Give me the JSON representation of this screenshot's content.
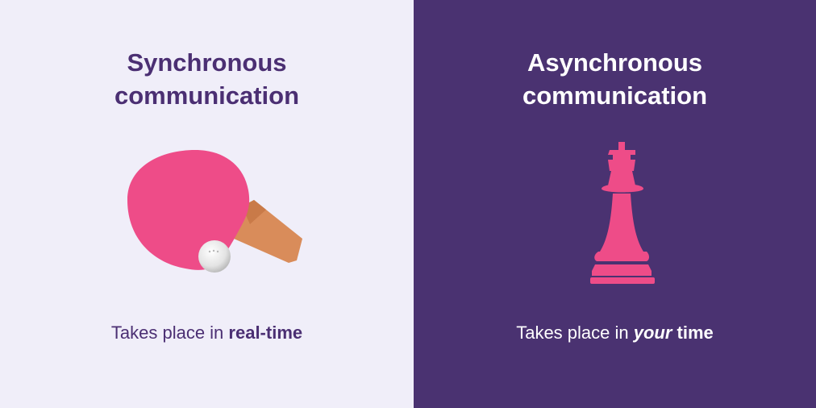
{
  "left_panel": {
    "title_line1": "Synchronous",
    "title_line2": "communication",
    "caption_prefix": "Takes place in ",
    "caption_emphasis": "real-time",
    "icon": "ping-pong-paddle-icon",
    "background": "#f0eef9",
    "text_color": "#4b2f73"
  },
  "right_panel": {
    "title_line1": "Asynchronous",
    "title_line2": "communication",
    "caption_prefix": "Takes place in ",
    "caption_emphasis": "your",
    "caption_suffix": " time",
    "icon": "chess-queen-icon",
    "background": "#4a3271",
    "text_color": "#ffffff"
  },
  "colors": {
    "accent_pink": "#ee4c88",
    "handle": "#d98c5a"
  }
}
